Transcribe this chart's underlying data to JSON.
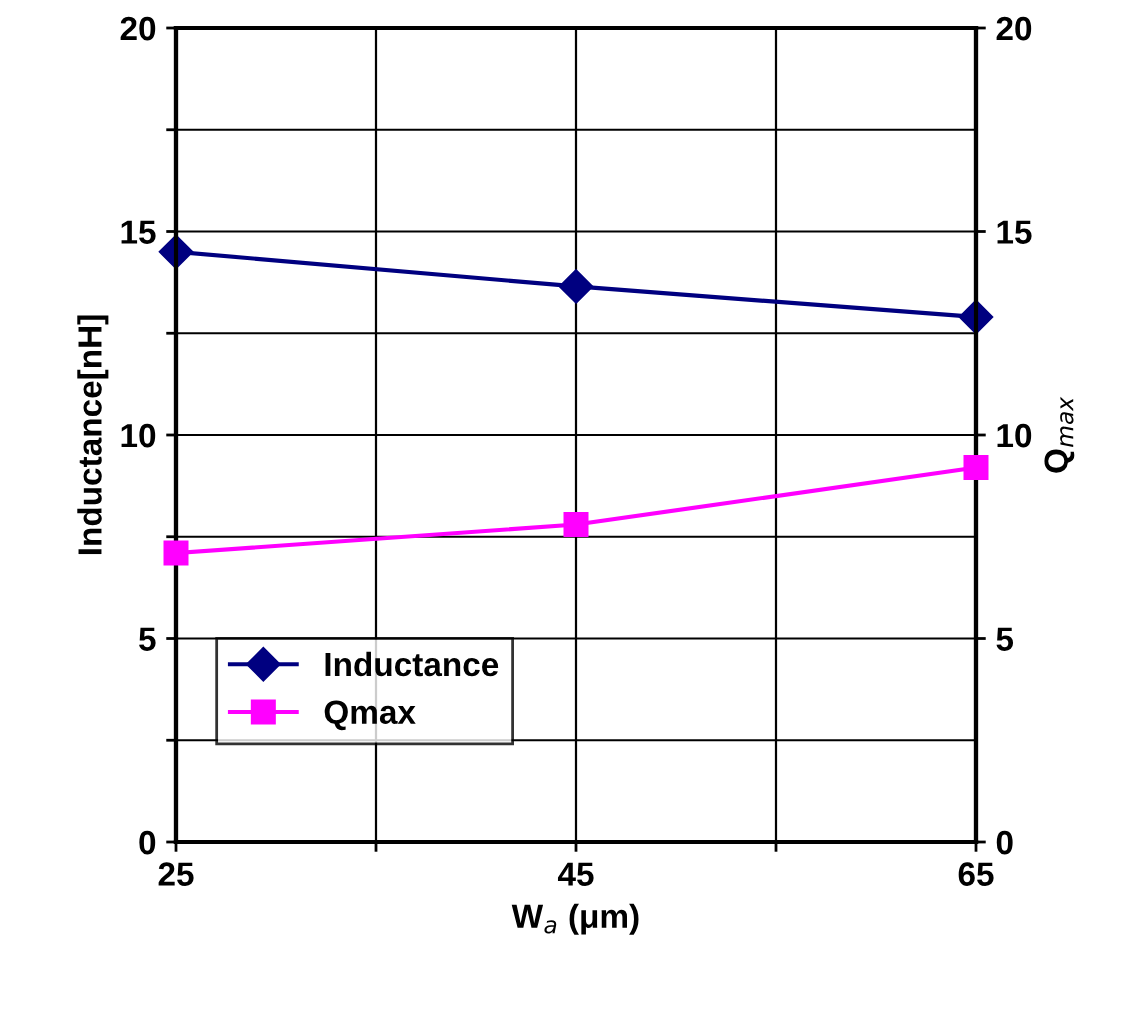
{
  "chart_data": {
    "type": "line",
    "xlabel": "W$_{a}$ (μm)",
    "ylabel": "Inductance[nH]",
    "y2label": "Q$_{max}$",
    "x": [
      25,
      45,
      65
    ],
    "series": [
      {
        "name": "Inductance",
        "color": "#000080",
        "values": [
          14.5,
          13.65,
          12.9
        ],
        "marker": "diamond"
      },
      {
        "name": "Qmax",
        "color": "#ff00ff",
        "values": [
          7.1,
          7.8,
          9.2
        ],
        "marker": "square",
        "axis": "y2"
      }
    ],
    "xlim": [
      25,
      65
    ],
    "xticks": [
      25,
      {
        "value": 35,
        "label": null
      },
      45,
      {
        "value": 55,
        "label": null
      },
      65
    ],
    "ylim": [
      0,
      20
    ],
    "yticks": [
      0,
      {
        "value": 2.5,
        "label": null
      },
      5,
      {
        "value": 7.5,
        "label": null
      },
      10,
      {
        "value": 12.5,
        "label": null
      },
      15,
      {
        "value": 17.5,
        "label": null
      },
      20
    ],
    "y2lim": [
      0,
      20
    ],
    "y2ticks": [
      0,
      5,
      10,
      15,
      20
    ],
    "grid": true,
    "legend": "bottom left",
    "line_style": "solid"
  }
}
